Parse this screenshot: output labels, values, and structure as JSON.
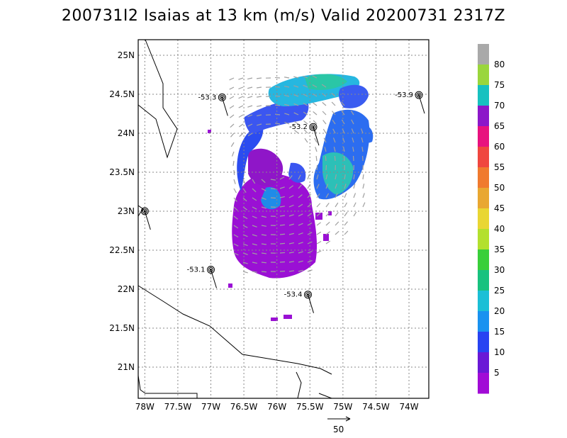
{
  "title": "200731I2 Isaias at 13 km (m/s) Valid 20200731 2317Z",
  "map": {
    "lon_ticks": [
      "78W",
      "77.5W",
      "77W",
      "76.5W",
      "76W",
      "75.5W",
      "75W",
      "74.5W",
      "74W"
    ],
    "lat_ticks": [
      "25N",
      "24.5N",
      "24N",
      "23.5N",
      "23N",
      "22.5N",
      "22N",
      "21.5N",
      "21N"
    ],
    "lon_range": [
      -78.1,
      -73.7
    ],
    "lat_range": [
      20.6,
      25.2
    ],
    "gridlines": "dotted"
  },
  "colorbar": {
    "labels": [
      "80",
      "75",
      "70",
      "65",
      "60",
      "55",
      "50",
      "45",
      "40",
      "35",
      "30",
      "25",
      "20",
      "15",
      "10",
      "5"
    ],
    "colors": [
      "#a9a9a9",
      "#9ad63c",
      "#17c1c0",
      "#8c17c9",
      "#e8127e",
      "#f0463f",
      "#f07a2e",
      "#e9a731",
      "#e9d633",
      "#b3e02e",
      "#39cf3a",
      "#17c27f",
      "#1bbfd6",
      "#1992f0",
      "#2843f2",
      "#6a18d6",
      "#a10bd6"
    ]
  },
  "wind_vector": {
    "label": "50"
  },
  "buoys": [
    {
      "value": "-53.3",
      "lon": -76.83,
      "lat": 24.46
    },
    {
      "value": "-53.9",
      "lon": -73.85,
      "lat": 24.49
    },
    {
      "value": "-53.2",
      "lon": -75.45,
      "lat": 24.08
    },
    {
      "value": "-53.1",
      "lon": -77.0,
      "lat": 22.25
    },
    {
      "value": "-53.4",
      "lon": -75.53,
      "lat": 21.93
    },
    {
      "value": "",
      "lon": -78.0,
      "lat": 23.0
    }
  ]
}
